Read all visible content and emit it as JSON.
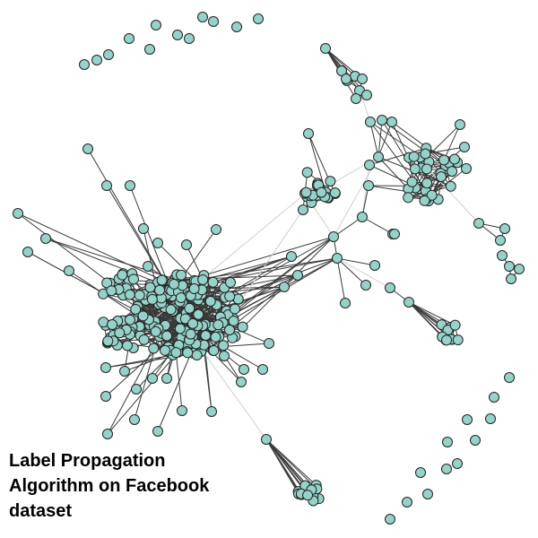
{
  "caption": {
    "line1": "Label Propagation",
    "line2": "Algorithm on Facebook",
    "line3": "dataset"
  },
  "colors": {
    "node_fill": "#95d2c9",
    "node_stroke": "#222222",
    "edge_dark": "#3a3a3a",
    "edge_light": "#cfcfcf"
  }
}
